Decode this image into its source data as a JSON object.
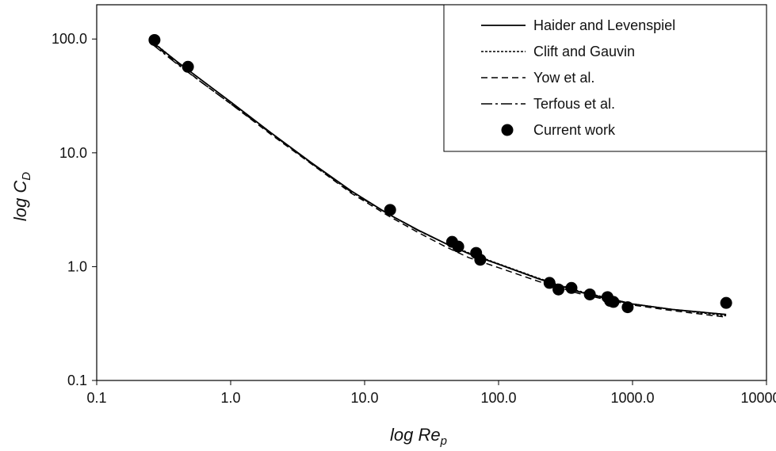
{
  "chart_data": {
    "type": "line",
    "xlabel_main": "log Re",
    "xlabel_sub": "p",
    "ylabel_main": "log C",
    "ylabel_sub": "D",
    "x_scale": "log",
    "y_scale": "log",
    "xlim": [
      0.1,
      10000
    ],
    "ylim": [
      0.1,
      200
    ],
    "x_ticks": [
      0.1,
      1,
      10,
      100,
      1000,
      10000
    ],
    "x_tick_labels": [
      "0.1",
      "1.0",
      "10.0",
      "100.0",
      "1000.0",
      "10000.0"
    ],
    "y_ticks": [
      0.1,
      1,
      10,
      100
    ],
    "y_tick_labels": [
      "0.1",
      "1.0",
      "10.0",
      "100.0"
    ],
    "grid": false,
    "legend_position": "top-right",
    "series": [
      {
        "name": "Haider and Levenspiel",
        "style": "solid",
        "x": [
          0.26,
          0.4,
          0.6,
          1.0,
          2.0,
          4.0,
          8.0,
          15.0,
          25.0,
          40.0,
          60.0,
          100.0,
          200.0,
          400.0,
          700.0,
          1000.0,
          2000.0,
          5000.0
        ],
        "y": [
          94.0,
          63.0,
          44.0,
          28.0,
          15.0,
          8.2,
          4.6,
          2.9,
          2.1,
          1.6,
          1.3,
          1.05,
          0.78,
          0.6,
          0.51,
          0.47,
          0.42,
          0.38
        ]
      },
      {
        "name": "Clift and Gauvin",
        "style": "dotted",
        "x": [
          0.26,
          0.4,
          0.6,
          1.0,
          2.0,
          4.0,
          8.0,
          15.0,
          25.0,
          40.0,
          60.0,
          100.0,
          200.0,
          400.0,
          700.0,
          1000.0,
          2000.0,
          5000.0
        ],
        "y": [
          95.0,
          63.0,
          44.0,
          28.0,
          15.0,
          8.1,
          4.6,
          2.9,
          2.1,
          1.6,
          1.32,
          1.06,
          0.79,
          0.61,
          0.52,
          0.47,
          0.42,
          0.37
        ]
      },
      {
        "name": "Yow et al.",
        "style": "dashed",
        "x": [
          0.26,
          0.4,
          0.6,
          1.0,
          2.0,
          4.0,
          8.0,
          15.0,
          25.0,
          40.0,
          60.0,
          100.0,
          200.0,
          400.0,
          700.0,
          1000.0,
          2000.0,
          5000.0
        ],
        "y": [
          92.0,
          61.0,
          42.0,
          27.0,
          14.5,
          8.0,
          4.4,
          2.8,
          2.0,
          1.5,
          1.2,
          0.98,
          0.74,
          0.58,
          0.5,
          0.46,
          0.41,
          0.36
        ]
      },
      {
        "name": "Terfous et al.",
        "style": "dashdot",
        "x": [
          0.26,
          0.4,
          0.6,
          1.0,
          2.0,
          4.0,
          8.0,
          15.0,
          25.0,
          40.0,
          60.0,
          100.0,
          200.0,
          400.0,
          700.0,
          1000.0,
          2000.0,
          5000.0
        ],
        "y": [
          90.0,
          60.0,
          42.0,
          27.0,
          14.8,
          8.1,
          4.5,
          2.9,
          2.08,
          1.6,
          1.3,
          1.05,
          0.78,
          0.6,
          0.52,
          0.47,
          0.42,
          0.38
        ]
      },
      {
        "name": "Current work",
        "style": "markers",
        "x": [
          0.27,
          0.48,
          15.5,
          45.0,
          50.0,
          68.0,
          73.0,
          240.0,
          280.0,
          350.0,
          480.0,
          650.0,
          680.0,
          720.0,
          920.0,
          5000.0
        ],
        "y": [
          98.0,
          57.0,
          3.15,
          1.65,
          1.5,
          1.32,
          1.15,
          0.72,
          0.63,
          0.65,
          0.57,
          0.54,
          0.5,
          0.49,
          0.44,
          0.48
        ]
      }
    ]
  }
}
